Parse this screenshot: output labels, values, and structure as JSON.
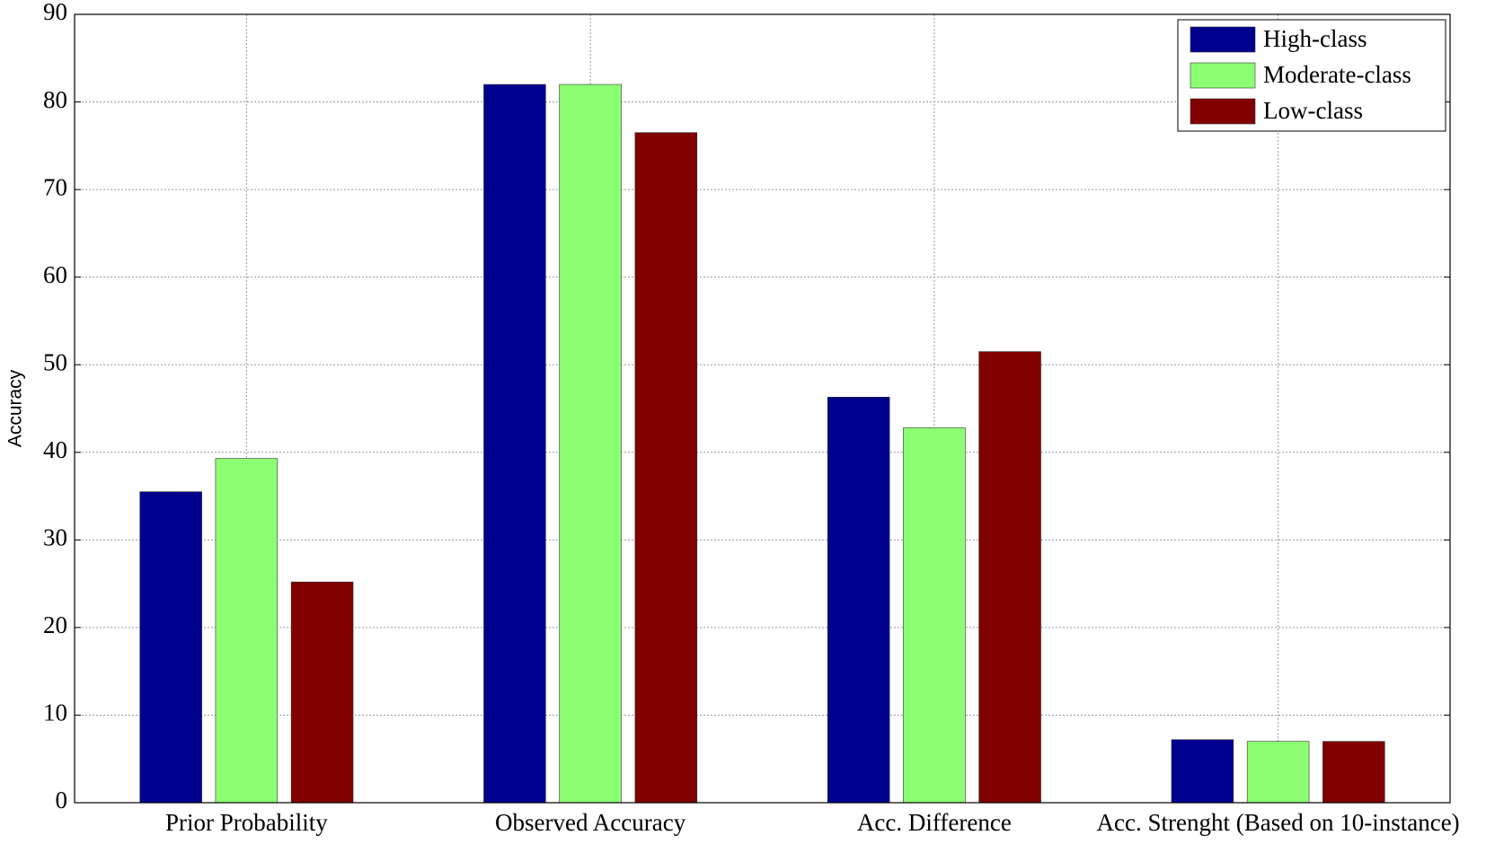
{
  "chart_data": {
    "type": "bar",
    "y_label": "Accuracy",
    "categories": [
      "Prior Probability",
      "Observed Accuracy",
      "Acc. Difference",
      "Acc. Strenght (Based on 10-instance)"
    ],
    "series": [
      {
        "name": "High-class",
        "color": "#00008f",
        "values": [
          35.5,
          82,
          46.3,
          7.2
        ]
      },
      {
        "name": "Moderate-class",
        "color": "#8cff73",
        "values": [
          39.3,
          82,
          42.8,
          7.0
        ]
      },
      {
        "name": "Low-class",
        "color": "#800000",
        "values": [
          25.2,
          76.5,
          51.5,
          7.0
        ]
      }
    ],
    "ylim": [
      0,
      90
    ],
    "yticks": [
      0,
      10,
      20,
      30,
      40,
      50,
      60,
      70,
      80,
      90
    ],
    "grid": true,
    "legend": "upper-right"
  }
}
